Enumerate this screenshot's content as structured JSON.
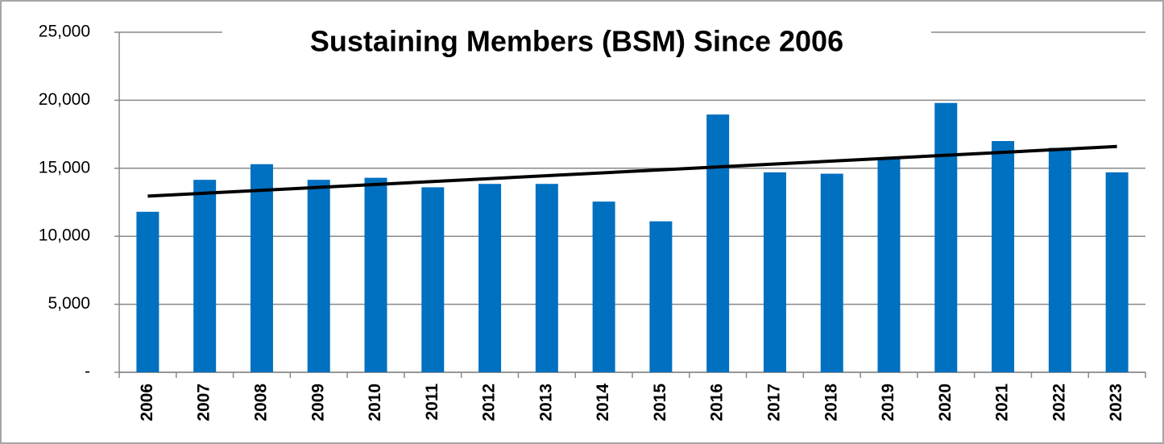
{
  "chart_data": {
    "type": "bar",
    "title": "Sustaining Members (BSM) Since 2006",
    "categories": [
      "2006",
      "2007",
      "2008",
      "2009",
      "2010",
      "2011",
      "2012",
      "2013",
      "2014",
      "2015",
      "2016",
      "2017",
      "2018",
      "2019",
      "2020",
      "2021",
      "2022",
      "2023"
    ],
    "values": [
      11800,
      14150,
      15300,
      14150,
      14300,
      13600,
      13850,
      13850,
      12550,
      11100,
      18950,
      14700,
      14600,
      15800,
      19800,
      17000,
      16500,
      14700
    ],
    "color": "#0070c0",
    "trendline": {
      "start": 12950,
      "end": 16600,
      "color": "#000000"
    },
    "ylim": [
      0,
      25000
    ],
    "yticks": [
      {
        "value": 0,
        "label": "-"
      },
      {
        "value": 5000,
        "label": "5,000"
      },
      {
        "value": 10000,
        "label": "10,000"
      },
      {
        "value": 15000,
        "label": "15,000"
      },
      {
        "value": 20000,
        "label": "20,000"
      },
      {
        "value": 25000,
        "label": "25,000"
      }
    ],
    "grid": true
  }
}
